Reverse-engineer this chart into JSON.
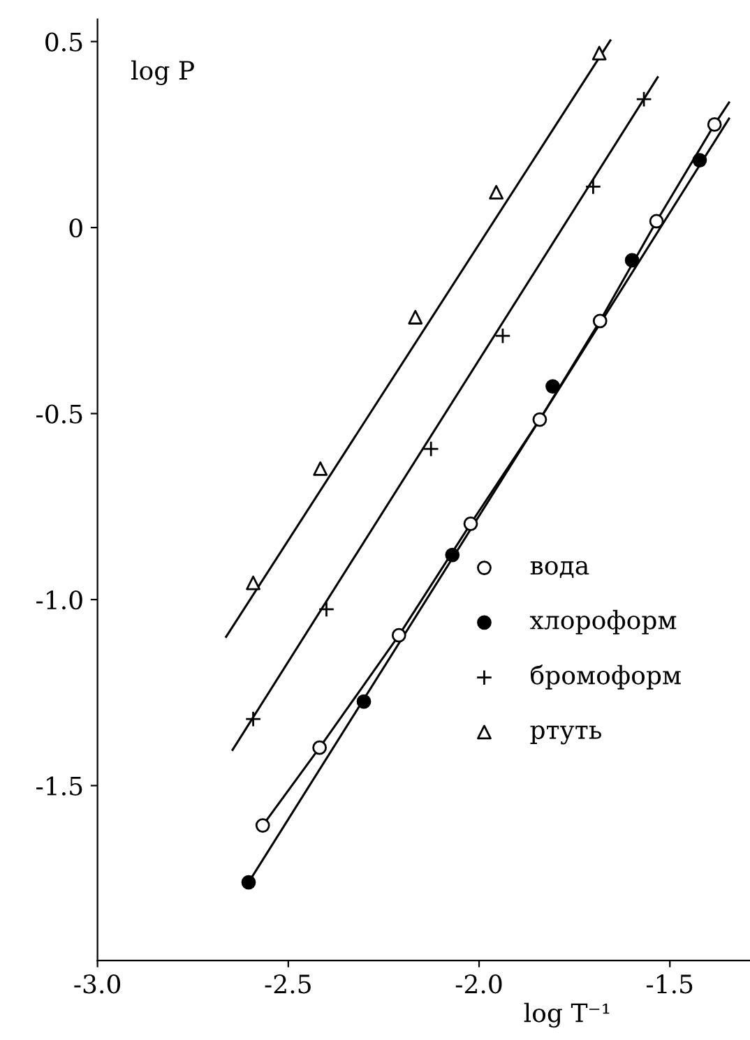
{
  "chart_data": {
    "type": "scatter",
    "xlabel": "log T⁻¹",
    "ylabel": "log P",
    "xlim": [
      -3.0,
      -1.29
    ],
    "ylim": [
      -1.97,
      0.56
    ],
    "xticks": [
      {
        "value": -3.0,
        "label": "-3.0"
      },
      {
        "value": -2.5,
        "label": "-2.5"
      },
      {
        "value": -2.0,
        "label": "-2.0"
      },
      {
        "value": -1.5,
        "label": "-1.5"
      }
    ],
    "yticks": [
      {
        "value": 0.5,
        "label": "0.5"
      },
      {
        "value": 0,
        "label": "0"
      },
      {
        "value": -0.5,
        "label": "-0.5"
      },
      {
        "value": -1.0,
        "label": "-1.0"
      },
      {
        "value": -1.5,
        "label": "-1.5"
      }
    ],
    "grid": false,
    "legend": "right",
    "series": [
      {
        "type": "line",
        "color": "#000000",
        "x": [
          -2.567,
          -2.418,
          -2.21,
          -2.022,
          -1.841,
          -1.683,
          -1.535,
          -1.383,
          -1.345
        ],
        "values": [
          -1.607,
          -1.398,
          -1.096,
          -0.796,
          -0.516,
          -0.251,
          0.017,
          0.277,
          0.336
        ]
      },
      {
        "type": "line",
        "color": "#000000",
        "x": [
          -2.604,
          -1.345
        ],
        "values": [
          -1.76,
          0.293
        ]
      },
      {
        "type": "line",
        "color": "#000000",
        "x": [
          -2.646,
          -1.532
        ],
        "values": [
          -1.404,
          0.404
        ]
      },
      {
        "type": "line",
        "color": "#000000",
        "x": [
          -2.663,
          -1.656
        ],
        "values": [
          -1.1,
          0.503
        ]
      },
      {
        "name": "вода",
        "marker": "circle",
        "color": "#ffffff",
        "x": [
          -2.567,
          -2.418,
          -2.21,
          -2.022,
          -1.841,
          -1.683,
          -1.535,
          -1.383
        ],
        "values": [
          -1.607,
          -1.398,
          -1.096,
          -0.796,
          -0.516,
          -0.251,
          0.017,
          0.277
        ]
      },
      {
        "name": "хлороформ",
        "marker": "circle",
        "color": "#000000",
        "x": [
          -2.604,
          -2.302,
          -2.07,
          -1.807,
          -1.599,
          -1.422
        ],
        "values": [
          -1.76,
          -1.274,
          -0.88,
          -0.427,
          -0.088,
          0.181
        ]
      },
      {
        "name": "бромоформ",
        "marker": "cross",
        "color": "#000000",
        "x": [
          -2.592,
          -2.4,
          -2.126,
          -1.938,
          -1.701,
          -1.568
        ],
        "values": [
          -1.321,
          -1.026,
          -0.595,
          -0.291,
          0.11,
          0.345
        ]
      },
      {
        "name": "ртуть",
        "marker": "triangle",
        "color": "#ffffff",
        "x": [
          -2.592,
          -2.416,
          -2.167,
          -1.955,
          -1.685
        ],
        "values": [
          -0.955,
          -0.648,
          -0.241,
          0.095,
          0.469
        ]
      }
    ]
  }
}
